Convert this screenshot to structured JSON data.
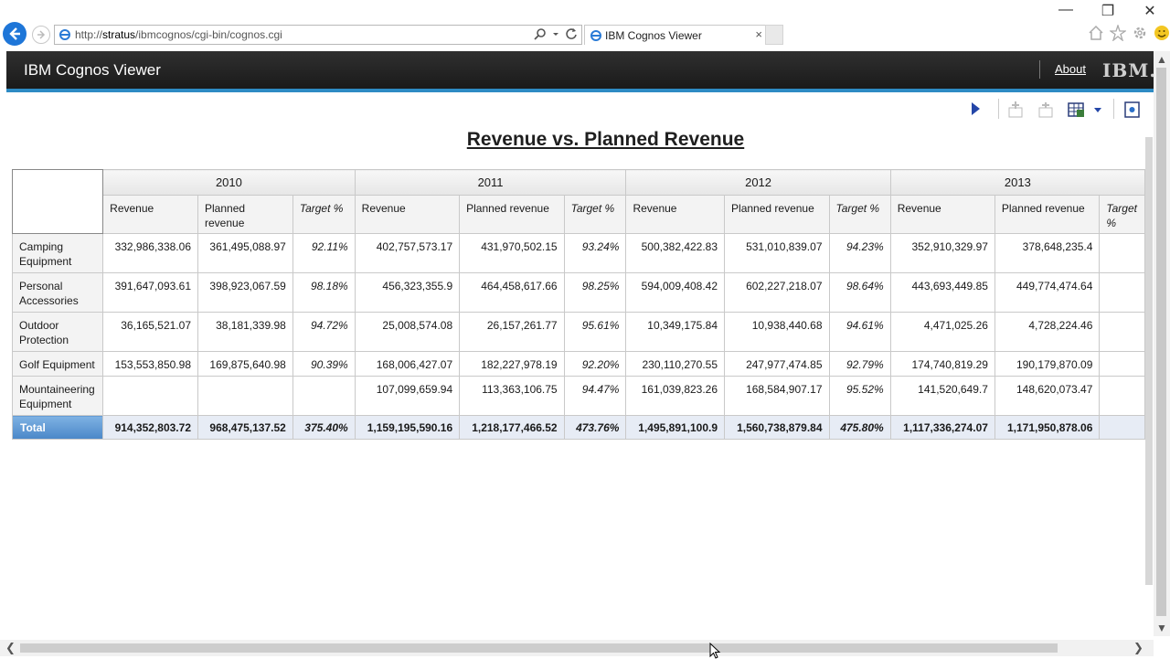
{
  "browser": {
    "url_prefix": "http://",
    "url_host": "stratus",
    "url_path": "/ibmcognos/cgi-bin/cognos.cgi",
    "tab_title": "IBM Cognos Viewer",
    "tab_close": "×",
    "window_controls": {
      "minimize": "—",
      "restore": "❐",
      "close": "✕"
    }
  },
  "header": {
    "app_title": "IBM Cognos Viewer",
    "about_label": "About",
    "logo_text": "IBM."
  },
  "report": {
    "title": "Revenue vs. Planned Revenue",
    "years": [
      "2010",
      "2011",
      "2012",
      "2013"
    ],
    "measures": {
      "revenue": "Revenue",
      "planned_2010": "Planned revenue",
      "planned": "Planned revenue",
      "target": "Target %"
    },
    "rows": [
      {
        "label": "Camping Equipment",
        "cells": [
          "332,986,338.06",
          "361,495,088.97",
          "92.11%",
          "402,757,573.17",
          "431,970,502.15",
          "93.24%",
          "500,382,422.83",
          "531,010,839.07",
          "94.23%",
          "352,910,329.97",
          "378,648,235.4"
        ]
      },
      {
        "label": "Personal Accessories",
        "cells": [
          "391,647,093.61",
          "398,923,067.59",
          "98.18%",
          "456,323,355.9",
          "464,458,617.66",
          "98.25%",
          "594,009,408.42",
          "602,227,218.07",
          "98.64%",
          "443,693,449.85",
          "449,774,474.64"
        ]
      },
      {
        "label": "Outdoor Protection",
        "cells": [
          "36,165,521.07",
          "38,181,339.98",
          "94.72%",
          "25,008,574.08",
          "26,157,261.77",
          "95.61%",
          "10,349,175.84",
          "10,938,440.68",
          "94.61%",
          "4,471,025.26",
          "4,728,224.46"
        ]
      },
      {
        "label": "Golf Equipment",
        "cells": [
          "153,553,850.98",
          "169,875,640.98",
          "90.39%",
          "168,006,427.07",
          "182,227,978.19",
          "92.20%",
          "230,110,270.55",
          "247,977,474.85",
          "92.79%",
          "174,740,819.29",
          "190,179,870.09"
        ]
      },
      {
        "label": "Mountaineering Equipment",
        "cells": [
          "",
          "",
          "",
          "107,099,659.94",
          "113,363,106.75",
          "94.47%",
          "161,039,823.26",
          "168,584,907.17",
          "95.52%",
          "141,520,649.7",
          "148,620,073.47"
        ]
      }
    ],
    "total": {
      "label": "Total",
      "cells": [
        "914,352,803.72",
        "968,475,137.52",
        "375.40%",
        "1,159,195,590.16",
        "1,218,177,466.52",
        "473.76%",
        "1,495,891,100.9",
        "1,560,738,879.84",
        "475.80%",
        "1,117,336,274.07",
        "1,171,950,878.06"
      ]
    }
  }
}
